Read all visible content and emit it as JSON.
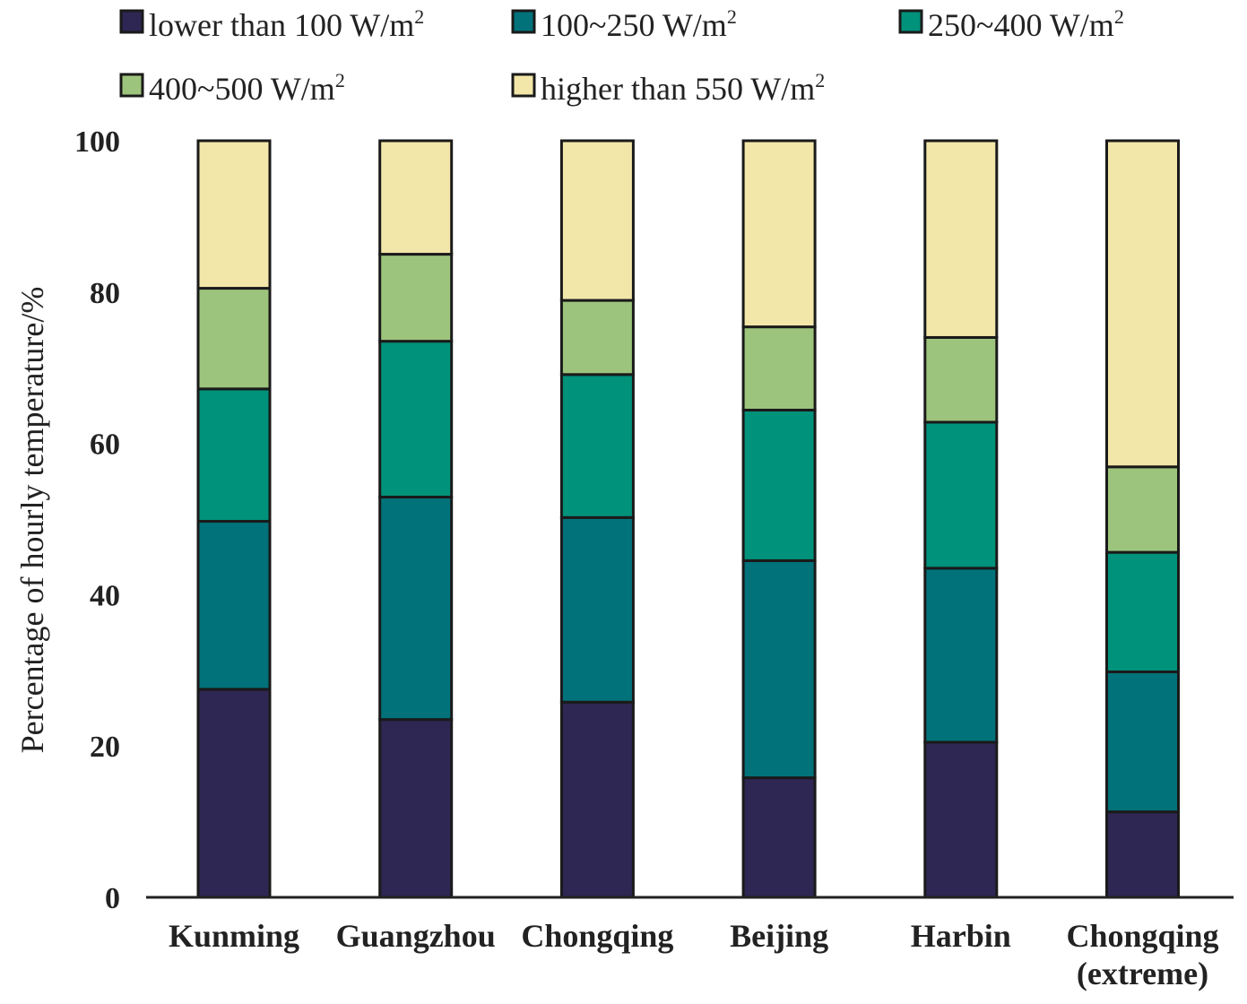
{
  "chart_data": {
    "type": "bar",
    "stacked": true,
    "title": "",
    "xlabel": "",
    "ylabel": "Percentage of hourly temperature/%",
    "ylim": [
      0,
      100
    ],
    "yticks": [
      "0",
      "20",
      "40",
      "60",
      "80",
      "100"
    ],
    "categories": [
      "Kunming",
      "Guangzhou",
      "Chongqing",
      "Beijing",
      "Harbin",
      "Chongqing (extreme)"
    ],
    "category_lines": [
      [
        "Kunming"
      ],
      [
        "Guangzhou"
      ],
      [
        "Chongqing"
      ],
      [
        "Beijing"
      ],
      [
        "Harbin"
      ],
      [
        "Chongqing",
        "(extreme)"
      ]
    ],
    "legend_position": "top",
    "grid": false,
    "series": [
      {
        "name": "lower than 100 W/m",
        "superscript": "2",
        "color": "#2e2653",
        "values": [
          27.5,
          23.5,
          25.8,
          15.8,
          20.5,
          11.3
        ]
      },
      {
        "name": "100~250 W/m",
        "superscript": "2",
        "color": "#02727a",
        "values": [
          22.2,
          29.4,
          24.4,
          28.7,
          23.0,
          18.5
        ]
      },
      {
        "name": "250~400 W/m",
        "superscript": "2",
        "color": "#00927a",
        "values": [
          17.5,
          20.6,
          18.9,
          19.9,
          19.3,
          15.8
        ]
      },
      {
        "name": "400~500 W/m",
        "superscript": "2",
        "color": "#9dc47c",
        "values": [
          13.3,
          11.5,
          9.8,
          11.0,
          11.2,
          11.3
        ]
      },
      {
        "name": "higher than 550 W/m",
        "superscript": "2",
        "color": "#f2e6a9",
        "values": [
          19.5,
          15.0,
          21.1,
          24.6,
          26.0,
          43.1
        ]
      }
    ]
  }
}
